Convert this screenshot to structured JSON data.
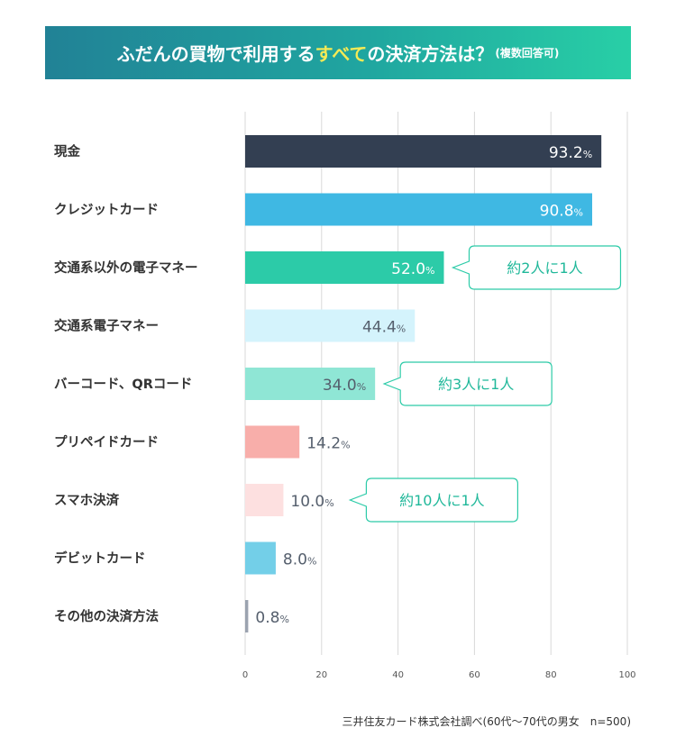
{
  "title": {
    "part1": "ふだんの買物で利用する",
    "highlight": "すべて",
    "part2": "の決済方法は？",
    "note": "(複数回答可)"
  },
  "chart_data": {
    "type": "bar",
    "orientation": "horizontal",
    "title": "ふだんの買物で利用するすべての決済方法は？(複数回答可)",
    "categories": [
      "現金",
      "クレジットカード",
      "交通系以外の電子マネー",
      "交通系電子マネー",
      "バーコード、QRコード",
      "プリペイドカード",
      "スマホ決済",
      "デビットカード",
      "その他の決済方法"
    ],
    "values": [
      93.2,
      90.8,
      52.0,
      44.4,
      34.0,
      14.2,
      10.0,
      8.0,
      0.8
    ],
    "value_labels": [
      "93.2",
      "90.8",
      "52.0",
      "44.4",
      "34.0",
      "14.2",
      "10.0",
      "8.0",
      "0.8"
    ],
    "unit": "%",
    "bar_colors": [
      "#333f52",
      "#3fb8e3",
      "#2ccba8",
      "#d4f3fc",
      "#8fe6d5",
      "#f8aeaa",
      "#fde0e0",
      "#73cfe8",
      "#9ba3b0"
    ],
    "label_inside": [
      true,
      true,
      true,
      true,
      true,
      false,
      false,
      false,
      false
    ],
    "label_colors": [
      "#ffffff",
      "#ffffff",
      "#ffffff",
      "#555f6d",
      "#555f6d",
      "#555f6d",
      "#555f6d",
      "#555f6d",
      "#555f6d"
    ],
    "xlim": [
      0,
      100
    ],
    "xticks": [
      0,
      20,
      40,
      60,
      80,
      100
    ],
    "grid": true,
    "xlabel": "",
    "ylabel": "",
    "annotations": [
      {
        "category_index": 2,
        "text": "約2人に1人"
      },
      {
        "category_index": 4,
        "text": "約3人に1人"
      },
      {
        "category_index": 6,
        "text": "約10人に1人"
      }
    ],
    "callout_color": "#2ccba8"
  },
  "source": "三井住友カード株式会社調べ(60代〜70代の男女　n=500)"
}
